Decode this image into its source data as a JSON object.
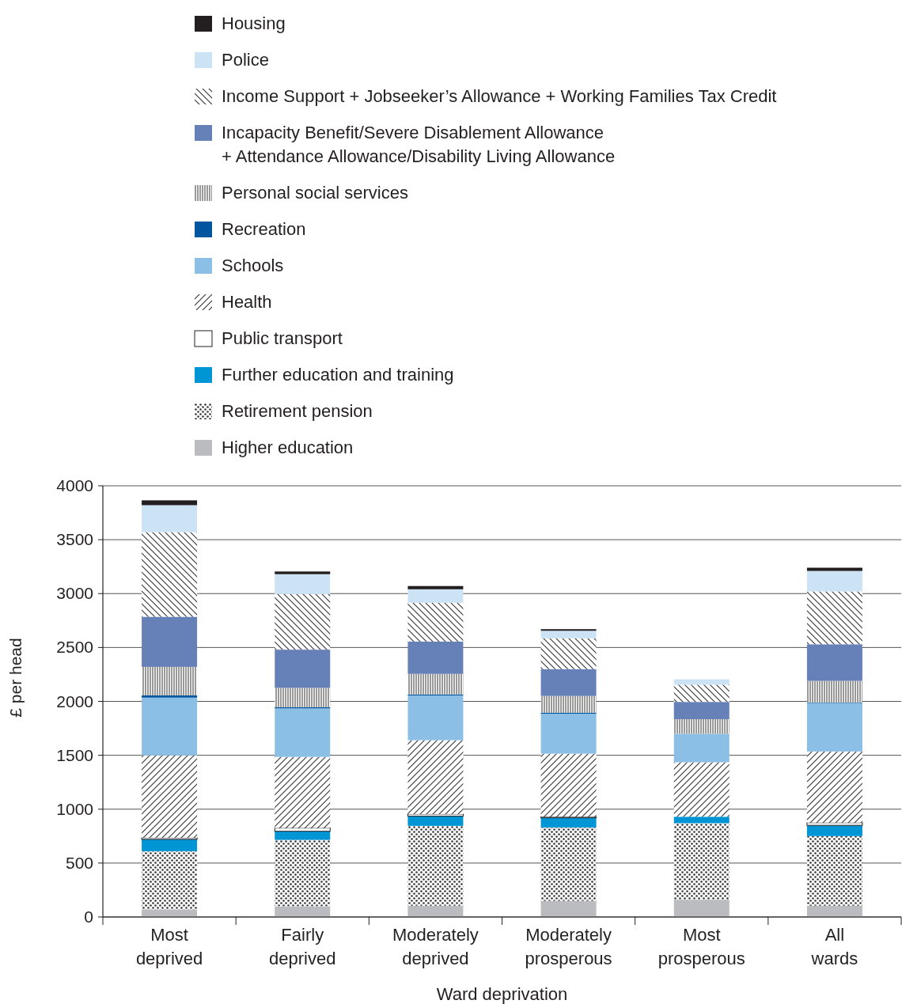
{
  "chart_data": {
    "type": "bar",
    "stacked": true,
    "xlabel": "Ward deprivation",
    "ylabel": "£ per head",
    "categories": [
      "Most deprived",
      "Fairly deprived",
      "Moderately deprived",
      "Moderately prosperous",
      "Most prosperous",
      "All wards"
    ],
    "ylim": [
      0,
      4000
    ],
    "yticks": [
      0,
      500,
      1000,
      1500,
      2000,
      2500,
      3000,
      3500,
      4000
    ],
    "grid": "y",
    "legend": "top",
    "series": [
      {
        "name": "Higher education",
        "color": "#bbbcc0",
        "values": [
          70,
          100,
          105,
          150,
          160,
          105
        ]
      },
      {
        "name": "Retirement pension",
        "color": "#333333",
        "values": [
          540,
          615,
          740,
          680,
          710,
          645
        ]
      },
      {
        "name": "Further education and training",
        "color": "#0096d6",
        "values": [
          110,
          80,
          90,
          90,
          60,
          100
        ]
      },
      {
        "name": "Public transport",
        "color": "#ffffff",
        "values": [
          15,
          30,
          20,
          10,
          0,
          25
        ]
      },
      {
        "name": "Health",
        "color": "#333333",
        "values": [
          765,
          660,
          685,
          585,
          505,
          660
        ]
      },
      {
        "name": "Schools",
        "color": "#8bbfe6",
        "values": [
          535,
          450,
          415,
          370,
          265,
          450
        ]
      },
      {
        "name": "Recreation",
        "color": "#0055a0",
        "values": [
          20,
          10,
          10,
          10,
          0,
          5
        ]
      },
      {
        "name": "Personal social services",
        "color": "#333333",
        "values": [
          265,
          180,
          190,
          155,
          135,
          200
        ]
      },
      {
        "name": "Incapacity Benefit/Severe Disablement Allowance\n+ Attendance Allowance/Disability Living Allowance",
        "color": "#6680b8",
        "values": [
          465,
          355,
          300,
          250,
          160,
          340
        ]
      },
      {
        "name": "Income Support + Jobseeker’s Allowance + Working Families Tax Credit",
        "color": "#333333",
        "values": [
          785,
          515,
          360,
          285,
          160,
          490
        ]
      },
      {
        "name": "Police",
        "color": "#cce3f5",
        "values": [
          250,
          185,
          125,
          70,
          50,
          190
        ]
      },
      {
        "name": "Housing",
        "color": "#231f20",
        "values": [
          45,
          25,
          30,
          15,
          0,
          30
        ]
      }
    ]
  }
}
